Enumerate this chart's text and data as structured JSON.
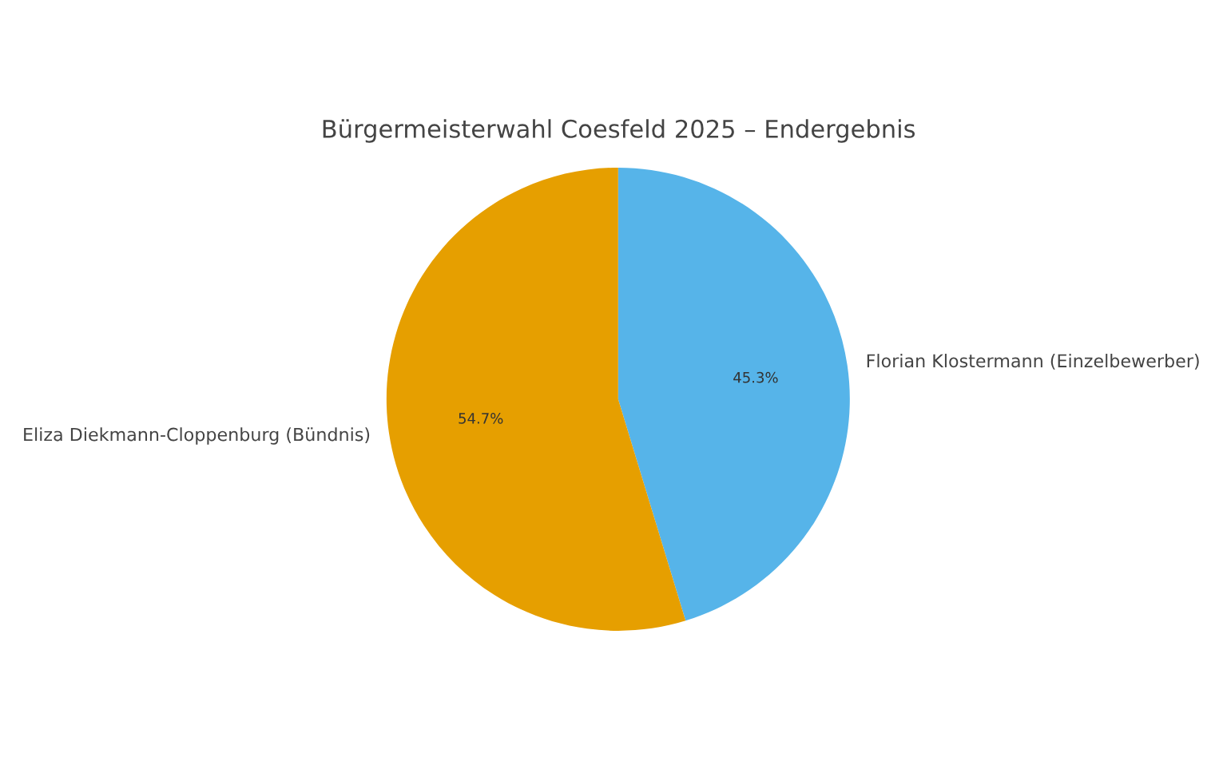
{
  "chart_data": {
    "type": "pie",
    "title": "Bürgermeisterwahl Coesfeld 2025 – Endergebnis",
    "categories": [
      "Florian Klostermann (Einzelbewerber)",
      "Eliza Diekmann-Cloppenburg (Bündnis)"
    ],
    "values": [
      45.3,
      54.7
    ],
    "colors": [
      "#56b4e9",
      "#e69f00"
    ],
    "value_labels": [
      "45.3%",
      "54.7%"
    ],
    "legend": false
  }
}
